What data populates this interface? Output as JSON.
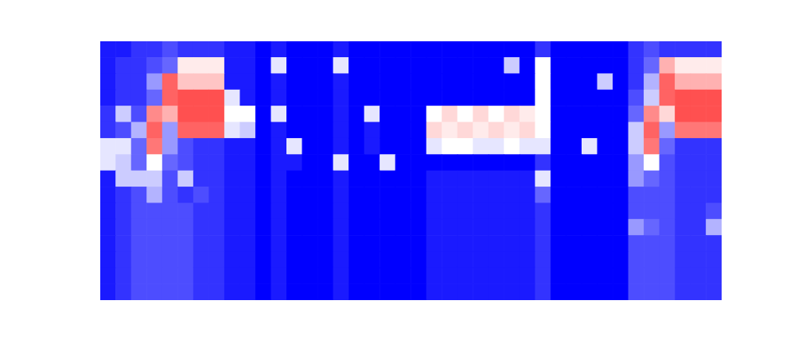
{
  "chart_data": {
    "type": "heatmap",
    "tick_labels": false,
    "cells": [
      [
        0.05,
        0.05,
        0.1,
        0.1,
        0.15,
        0.1,
        0.1,
        0.1,
        0.05,
        0.05,
        0,
        0.05,
        0,
        0,
        0,
        0.05,
        0,
        0,
        0,
        0,
        0,
        0,
        0,
        0,
        0,
        0,
        0,
        0,
        0.1,
        0,
        0,
        0,
        0,
        0,
        0.1,
        0.15,
        0.1,
        0.1,
        0.1,
        0.1
      ],
      [
        0.05,
        0.1,
        0.1,
        0.15,
        0.2,
        0.55,
        0.55,
        0.55,
        0.05,
        0.05,
        0,
        0.45,
        0,
        0,
        0,
        0.45,
        0,
        0,
        0,
        0,
        0,
        0,
        0,
        0,
        0,
        0,
        0.4,
        0,
        0.5,
        0,
        0,
        0,
        0,
        0,
        0.1,
        0.2,
        0.7,
        0.55,
        0.55,
        0.55
      ],
      [
        0.05,
        0.1,
        0.1,
        0.3,
        0.9,
        0.65,
        0.65,
        0.65,
        0.05,
        0.05,
        0,
        0.05,
        0,
        0,
        0,
        0.05,
        0,
        0,
        0,
        0,
        0,
        0,
        0,
        0,
        0,
        0,
        0,
        0,
        0.5,
        0,
        0,
        0,
        0.4,
        0,
        0.1,
        0.35,
        0.9,
        0.7,
        0.7,
        0.7
      ],
      [
        0.05,
        0.1,
        0.1,
        0.2,
        0.9,
        0.95,
        0.95,
        0.95,
        0.45,
        0.05,
        0,
        0.05,
        0,
        0,
        0,
        0.05,
        0,
        0,
        0,
        0,
        0,
        0,
        0,
        0,
        0,
        0,
        0,
        0,
        0.5,
        0,
        0,
        0,
        0,
        0,
        0.15,
        0.4,
        0.9,
        0.95,
        0.95,
        0.95
      ],
      [
        0.1,
        0.4,
        0.15,
        0.8,
        0.7,
        0.95,
        0.95,
        0.95,
        0.5,
        0.5,
        0,
        0.45,
        0,
        0,
        0,
        0.05,
        0,
        0.45,
        0,
        0,
        0,
        0.5,
        0.6,
        0.5,
        0.6,
        0.5,
        0.6,
        0.55,
        0.5,
        0,
        0,
        0,
        0,
        0,
        0.2,
        0.8,
        0.6,
        0.95,
        0.95,
        0.95
      ],
      [
        0.1,
        0.15,
        0.35,
        0.9,
        0.3,
        0.9,
        0.9,
        0.9,
        0.45,
        0.4,
        0,
        0.05,
        0,
        0,
        0,
        0.05,
        0,
        0.05,
        0,
        0,
        0,
        0.6,
        0.55,
        0.6,
        0.55,
        0.6,
        0.55,
        0.6,
        0.5,
        0,
        0,
        0,
        0,
        0,
        0.4,
        0.9,
        0.3,
        0.85,
        0.85,
        0.85
      ],
      [
        0.45,
        0.45,
        0.2,
        0.85,
        0.3,
        0.15,
        0.1,
        0.1,
        0.05,
        0.05,
        0,
        0.05,
        0.45,
        0,
        0,
        0.05,
        0,
        0.05,
        0,
        0,
        0,
        0.45,
        0.5,
        0.5,
        0.45,
        0.45,
        0.5,
        0.45,
        0.45,
        0,
        0,
        0.45,
        0,
        0,
        0.4,
        0.85,
        0.2,
        0.1,
        0.1,
        0.1
      ],
      [
        0.45,
        0.4,
        0.2,
        0.5,
        0.2,
        0.15,
        0.1,
        0.1,
        0.05,
        0.05,
        0,
        0.05,
        0.05,
        0,
        0,
        0.45,
        0,
        0,
        0.45,
        0,
        0,
        0,
        0,
        0,
        0,
        0,
        0,
        0,
        0.1,
        0,
        0,
        0,
        0,
        0,
        0.3,
        0.5,
        0.15,
        0.1,
        0.1,
        0.1
      ],
      [
        0.05,
        0.4,
        0.4,
        0.4,
        0.15,
        0.4,
        0.1,
        0.1,
        0.05,
        0.05,
        0,
        0.05,
        0,
        0,
        0,
        0.05,
        0,
        0,
        0,
        0,
        0,
        0.05,
        0.05,
        0.05,
        0.05,
        0.05,
        0.05,
        0.05,
        0.45,
        0,
        0,
        0,
        0,
        0,
        0.3,
        0.2,
        0.15,
        0.1,
        0.1,
        0.1
      ],
      [
        0.05,
        0.1,
        0.15,
        0.35,
        0.15,
        0.1,
        0.15,
        0.1,
        0.05,
        0.05,
        0,
        0.05,
        0,
        0,
        0,
        0.05,
        0,
        0,
        0,
        0,
        0,
        0.05,
        0.05,
        0.05,
        0.05,
        0.05,
        0.05,
        0.05,
        0.2,
        0,
        0,
        0,
        0,
        0,
        0.15,
        0.15,
        0.15,
        0.1,
        0.1,
        0.1
      ],
      [
        0.05,
        0.1,
        0.15,
        0.15,
        0.15,
        0.15,
        0.1,
        0.1,
        0.05,
        0.05,
        0,
        0.05,
        0,
        0,
        0,
        0.05,
        0,
        0,
        0,
        0,
        0,
        0.05,
        0.05,
        0.05,
        0.05,
        0.05,
        0.05,
        0.05,
        0.1,
        0,
        0,
        0,
        0,
        0,
        0.15,
        0.15,
        0.15,
        0.1,
        0.1,
        0.15
      ],
      [
        0.05,
        0.1,
        0.15,
        0.15,
        0.15,
        0.15,
        0.1,
        0.1,
        0.05,
        0.05,
        0,
        0.05,
        0,
        0,
        0,
        0.05,
        0,
        0,
        0,
        0,
        0,
        0.05,
        0.05,
        0.05,
        0.05,
        0.05,
        0.05,
        0.05,
        0.1,
        0,
        0,
        0,
        0,
        0,
        0.3,
        0.2,
        0.15,
        0.1,
        0.1,
        0.35
      ],
      [
        0.05,
        0.1,
        0.15,
        0.15,
        0.15,
        0.15,
        0.1,
        0.1,
        0.05,
        0.05,
        0,
        0.05,
        0,
        0,
        0,
        0.05,
        0,
        0,
        0,
        0,
        0,
        0.05,
        0.05,
        0.05,
        0.05,
        0.05,
        0.05,
        0.05,
        0.1,
        0,
        0,
        0,
        0,
        0,
        0.15,
        0.15,
        0.15,
        0.1,
        0.1,
        0.1
      ],
      [
        0.05,
        0.1,
        0.15,
        0.15,
        0.15,
        0.15,
        0.1,
        0.1,
        0.05,
        0.05,
        0,
        0.05,
        0,
        0,
        0,
        0.05,
        0,
        0,
        0,
        0,
        0,
        0.05,
        0.05,
        0.05,
        0.05,
        0.05,
        0.05,
        0.05,
        0.1,
        0,
        0,
        0,
        0,
        0,
        0.15,
        0.15,
        0.15,
        0.1,
        0.1,
        0.1
      ],
      [
        0.05,
        0.1,
        0.15,
        0.15,
        0.15,
        0.15,
        0.1,
        0.1,
        0.05,
        0.05,
        0,
        0.05,
        0,
        0,
        0,
        0.05,
        0,
        0,
        0,
        0,
        0,
        0.05,
        0.05,
        0.05,
        0.05,
        0.05,
        0.05,
        0.05,
        0.1,
        0,
        0,
        0,
        0,
        0,
        0.15,
        0.15,
        0.15,
        0.1,
        0.1,
        0.1
      ],
      [
        0.05,
        0.1,
        0.15,
        0.15,
        0.15,
        0.15,
        0.1,
        0.1,
        0.05,
        0.05,
        0,
        0.05,
        0,
        0,
        0,
        0.05,
        0,
        0,
        0,
        0,
        0,
        0.05,
        0.05,
        0.05,
        0.05,
        0.05,
        0.05,
        0.05,
        0.1,
        0,
        0,
        0,
        0,
        0,
        0.15,
        0.15,
        0.15,
        0.1,
        0.1,
        0.1
      ]
    ]
  }
}
